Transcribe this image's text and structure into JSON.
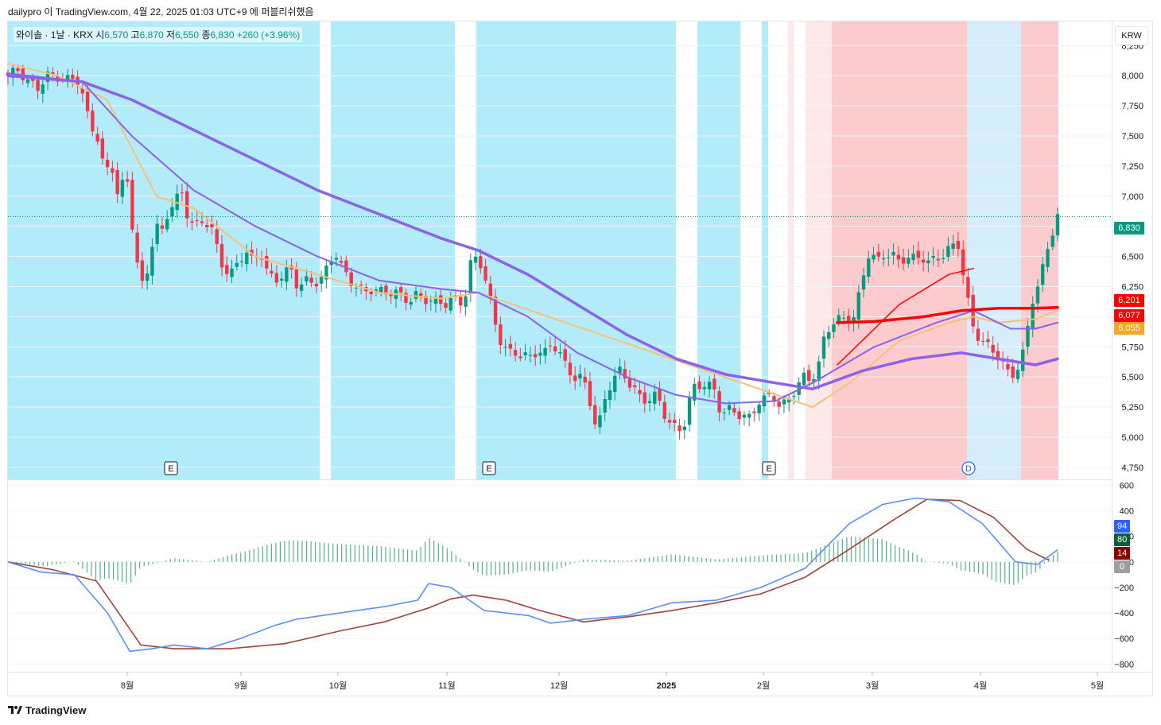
{
  "header": {
    "note": "dailypro 이 TradingView.com, 4월 22, 2025 01:03 UTC+9 에 퍼블리쉬했음"
  },
  "legend": {
    "symbol": "와이솔 · 1날 · KRX",
    "open_label": "시",
    "open": "6,570",
    "high_label": "고",
    "high": "6,870",
    "low_label": "저",
    "low": "6,550",
    "close_label": "종",
    "close": "6,830",
    "change": "+260 (+3.96%)"
  },
  "currency_button": "KRW",
  "brand": "TradingView",
  "colors": {
    "up": "#089981",
    "down": "#f23645",
    "bg_cyan": "#b2ebf9",
    "bg_red": "#fccbcd",
    "bg_pale_red": "#fde8e9",
    "bg_pale_blue": "#d6eefb",
    "ma_purple": "#8a63e8",
    "ma_red": "#ff0000",
    "ma_orange": "#f6c177",
    "macd_blue": "#5b8ff9",
    "signal_brown": "#a0413d"
  },
  "price_labels": [
    {
      "text": "6,830",
      "color": "#089981"
    },
    {
      "text": "6,201",
      "color": "#ff0000"
    },
    {
      "text": "6,077",
      "color": "#ff0000"
    },
    {
      "text": "6,055",
      "color": "#f5a623"
    }
  ],
  "osc_labels": [
    {
      "text": "94",
      "color": "#2962ff"
    },
    {
      "text": "80",
      "color": "#0d5c3a"
    },
    {
      "text": "14",
      "color": "#8b0000"
    },
    {
      "text": "0",
      "color": "#9e9e9e"
    }
  ],
  "chart_data": {
    "type": "candlestick",
    "price_axis": {
      "ticks": [
        8250,
        8000,
        7750,
        7500,
        7250,
        7000,
        6750,
        6500,
        6250,
        6000,
        5750,
        5500,
        5250,
        5000,
        4750
      ],
      "tick_labels": [
        "8,250",
        "8,000",
        "7,750",
        "7,500",
        "7,250",
        "7,000",
        "6,750",
        "6,500",
        "6,250",
        "6,000",
        "5,750",
        "5,500",
        "5,250",
        "5,000",
        "4,750"
      ],
      "ylim": [
        4650,
        8450
      ]
    },
    "osc_axis": {
      "ticks": [
        600,
        400,
        200,
        0,
        -200,
        -400,
        -600,
        -800
      ],
      "tick_labels": [
        "600",
        "400",
        "200",
        "0",
        "−200",
        "−400",
        "−600",
        "−800"
      ],
      "ylim": [
        -860,
        640
      ]
    },
    "x_axis": {
      "labels": [
        "8월",
        "9월",
        "10월",
        "11월",
        "12월",
        "2025",
        "2월",
        "3월",
        "4월",
        "5월"
      ]
    },
    "last_price": 6830,
    "events": [
      "E",
      "E",
      "E",
      "D"
    ],
    "close_path": [
      [
        0,
        8000
      ],
      [
        8,
        8050
      ],
      [
        16,
        7950
      ],
      [
        24,
        7900
      ],
      [
        32,
        8000
      ],
      [
        40,
        7990
      ],
      [
        50,
        7960
      ],
      [
        55,
        8000
      ],
      [
        60,
        7850
      ],
      [
        66,
        7600
      ],
      [
        72,
        7500
      ],
      [
        78,
        7200
      ],
      [
        84,
        7250
      ],
      [
        90,
        6950
      ],
      [
        95,
        7250
      ],
      [
        100,
        6800
      ],
      [
        105,
        6400
      ],
      [
        110,
        6200
      ],
      [
        115,
        6550
      ],
      [
        120,
        6750
      ],
      [
        125,
        6700
      ],
      [
        130,
        6900
      ],
      [
        135,
        6950
      ],
      [
        140,
        7050
      ],
      [
        146,
        6800
      ],
      [
        152,
        6750
      ],
      [
        158,
        6800
      ],
      [
        164,
        6750
      ],
      [
        168,
        6600
      ],
      [
        174,
        6400
      ],
      [
        180,
        6350
      ],
      [
        186,
        6450
      ],
      [
        192,
        6550
      ],
      [
        198,
        6450
      ],
      [
        204,
        6550
      ],
      [
        210,
        6350
      ],
      [
        216,
        6300
      ],
      [
        222,
        6350
      ],
      [
        228,
        6400
      ],
      [
        234,
        6250
      ],
      [
        240,
        6300
      ],
      [
        246,
        6280
      ],
      [
        252,
        6300
      ],
      [
        258,
        6400
      ],
      [
        264,
        6550
      ],
      [
        270,
        6400
      ],
      [
        276,
        6300
      ],
      [
        282,
        6250
      ],
      [
        288,
        6200
      ],
      [
        294,
        6230
      ],
      [
        300,
        6210
      ],
      [
        306,
        6200
      ],
      [
        312,
        6210
      ],
      [
        318,
        6170
      ],
      [
        324,
        6130
      ],
      [
        330,
        6180
      ],
      [
        336,
        6150
      ],
      [
        342,
        6130
      ],
      [
        348,
        6120
      ],
      [
        354,
        6110
      ],
      [
        360,
        6150
      ],
      [
        366,
        6120
      ],
      [
        370,
        6200
      ],
      [
        374,
        6450
      ],
      [
        380,
        6500
      ],
      [
        386,
        6300
      ],
      [
        392,
        6000
      ],
      [
        398,
        5800
      ],
      [
        404,
        5700
      ],
      [
        410,
        5700
      ],
      [
        416,
        5680
      ],
      [
        422,
        5660
      ],
      [
        428,
        5720
      ],
      [
        434,
        5700
      ],
      [
        440,
        5780
      ],
      [
        446,
        5700
      ],
      [
        452,
        5550
      ],
      [
        458,
        5500
      ],
      [
        464,
        5500
      ],
      [
        470,
        5300
      ],
      [
        476,
        5050
      ],
      [
        482,
        5300
      ],
      [
        488,
        5480
      ],
      [
        494,
        5550
      ],
      [
        500,
        5480
      ],
      [
        506,
        5400
      ],
      [
        512,
        5300
      ],
      [
        518,
        5320
      ],
      [
        524,
        5350
      ],
      [
        530,
        5200
      ],
      [
        536,
        5100
      ],
      [
        542,
        5050
      ],
      [
        548,
        5150
      ],
      [
        552,
        5400
      ],
      [
        558,
        5420
      ],
      [
        564,
        5450
      ],
      [
        570,
        5400
      ],
      [
        576,
        5200
      ],
      [
        582,
        5230
      ],
      [
        588,
        5200
      ],
      [
        594,
        5180
      ],
      [
        600,
        5150
      ],
      [
        606,
        5300
      ],
      [
        612,
        5320
      ],
      [
        618,
        5350
      ],
      [
        624,
        5250
      ],
      [
        630,
        5300
      ],
      [
        636,
        5400
      ],
      [
        642,
        5500
      ],
      [
        648,
        5480
      ],
      [
        654,
        5550
      ],
      [
        660,
        5850
      ],
      [
        666,
        5950
      ],
      [
        672,
        5980
      ],
      [
        678,
        5980
      ],
      [
        684,
        6000
      ],
      [
        690,
        6300
      ],
      [
        696,
        6550
      ],
      [
        702,
        6450
      ],
      [
        708,
        6520
      ],
      [
        714,
        6520
      ],
      [
        720,
        6450
      ],
      [
        726,
        6500
      ],
      [
        732,
        6480
      ],
      [
        738,
        6500
      ],
      [
        744,
        6450
      ],
      [
        750,
        6480
      ],
      [
        756,
        6520
      ],
      [
        762,
        6580
      ],
      [
        768,
        6600
      ],
      [
        774,
        6200
      ],
      [
        780,
        5900
      ],
      [
        786,
        5800
      ],
      [
        792,
        5750
      ],
      [
        798,
        5700
      ],
      [
        804,
        5600
      ],
      [
        810,
        5500
      ],
      [
        816,
        5580
      ],
      [
        822,
        5750
      ],
      [
        826,
        6100
      ],
      [
        830,
        6200
      ],
      [
        834,
        6300
      ],
      [
        838,
        6500
      ],
      [
        842,
        6650
      ],
      [
        848,
        6830
      ]
    ],
    "ma_long_purple": [
      [
        0,
        8000
      ],
      [
        60,
        7950
      ],
      [
        100,
        7800
      ],
      [
        150,
        7550
      ],
      [
        200,
        7300
      ],
      [
        250,
        7050
      ],
      [
        300,
        6850
      ],
      [
        350,
        6650
      ],
      [
        380,
        6550
      ],
      [
        420,
        6350
      ],
      [
        460,
        6100
      ],
      [
        500,
        5850
      ],
      [
        540,
        5650
      ],
      [
        580,
        5520
      ],
      [
        620,
        5450
      ],
      [
        650,
        5400
      ],
      [
        690,
        5550
      ],
      [
        730,
        5650
      ],
      [
        770,
        5700
      ],
      [
        800,
        5650
      ],
      [
        830,
        5600
      ],
      [
        848,
        5650
      ]
    ],
    "ma_mid_purple": [
      [
        0,
        8020
      ],
      [
        60,
        7950
      ],
      [
        100,
        7500
      ],
      [
        150,
        7050
      ],
      [
        200,
        6750
      ],
      [
        250,
        6500
      ],
      [
        300,
        6300
      ],
      [
        350,
        6230
      ],
      [
        380,
        6200
      ],
      [
        420,
        6000
      ],
      [
        460,
        5700
      ],
      [
        500,
        5500
      ],
      [
        540,
        5350
      ],
      [
        580,
        5280
      ],
      [
        620,
        5300
      ],
      [
        650,
        5450
      ],
      [
        700,
        5750
      ],
      [
        750,
        5950
      ],
      [
        780,
        6050
      ],
      [
        810,
        5900
      ],
      [
        830,
        5900
      ],
      [
        848,
        5950
      ]
    ],
    "ma_red": [
      [
        670,
        5950
      ],
      [
        700,
        5960
      ],
      [
        740,
        6000
      ],
      [
        770,
        6050
      ],
      [
        800,
        6070
      ],
      [
        830,
        6070
      ],
      [
        848,
        6077
      ]
    ],
    "ma_red_short": [
      [
        670,
        5600
      ],
      [
        690,
        5800
      ],
      [
        720,
        6100
      ],
      [
        760,
        6350
      ],
      [
        780,
        6400
      ]
    ],
    "ma_orange": [
      [
        0,
        8100
      ],
      [
        40,
        8000
      ],
      [
        80,
        7800
      ],
      [
        100,
        7400
      ],
      [
        120,
        7000
      ],
      [
        150,
        6900
      ],
      [
        200,
        6500
      ],
      [
        250,
        6350
      ],
      [
        300,
        6200
      ],
      [
        350,
        6150
      ],
      [
        380,
        6200
      ],
      [
        650,
        5250
      ],
      [
        680,
        5450
      ],
      [
        720,
        5800
      ],
      [
        760,
        5950
      ],
      [
        780,
        6000
      ],
      [
        800,
        5950
      ],
      [
        830,
        5980
      ],
      [
        848,
        6055
      ]
    ],
    "macd_line": [
      [
        0,
        0
      ],
      [
        30,
        -80
      ],
      [
        60,
        -100
      ],
      [
        90,
        -400
      ],
      [
        110,
        -700
      ],
      [
        130,
        -680
      ],
      [
        150,
        -650
      ],
      [
        180,
        -680
      ],
      [
        210,
        -600
      ],
      [
        240,
        -500
      ],
      [
        260,
        -450
      ],
      [
        300,
        -400
      ],
      [
        340,
        -350
      ],
      [
        370,
        -300
      ],
      [
        380,
        -170
      ],
      [
        400,
        -200
      ],
      [
        430,
        -380
      ],
      [
        470,
        -420
      ],
      [
        490,
        -480
      ],
      [
        520,
        -450
      ],
      [
        560,
        -420
      ],
      [
        600,
        -320
      ],
      [
        640,
        -300
      ],
      [
        680,
        -200
      ],
      [
        720,
        -50
      ],
      [
        760,
        300
      ],
      [
        790,
        450
      ],
      [
        820,
        500
      ],
      [
        850,
        470
      ],
      [
        880,
        300
      ],
      [
        910,
        0
      ],
      [
        930,
        -20
      ],
      [
        948,
        94
      ]
    ],
    "signal_line": [
      [
        0,
        0
      ],
      [
        40,
        -60
      ],
      [
        80,
        -150
      ],
      [
        120,
        -650
      ],
      [
        150,
        -680
      ],
      [
        200,
        -680
      ],
      [
        250,
        -640
      ],
      [
        300,
        -540
      ],
      [
        340,
        -470
      ],
      [
        380,
        -360
      ],
      [
        400,
        -290
      ],
      [
        420,
        -260
      ],
      [
        450,
        -300
      ],
      [
        480,
        -380
      ],
      [
        520,
        -470
      ],
      [
        560,
        -430
      ],
      [
        600,
        -380
      ],
      [
        640,
        -320
      ],
      [
        680,
        -250
      ],
      [
        720,
        -120
      ],
      [
        760,
        100
      ],
      [
        800,
        330
      ],
      [
        830,
        490
      ],
      [
        860,
        480
      ],
      [
        890,
        350
      ],
      [
        920,
        100
      ],
      [
        940,
        14
      ]
    ]
  }
}
